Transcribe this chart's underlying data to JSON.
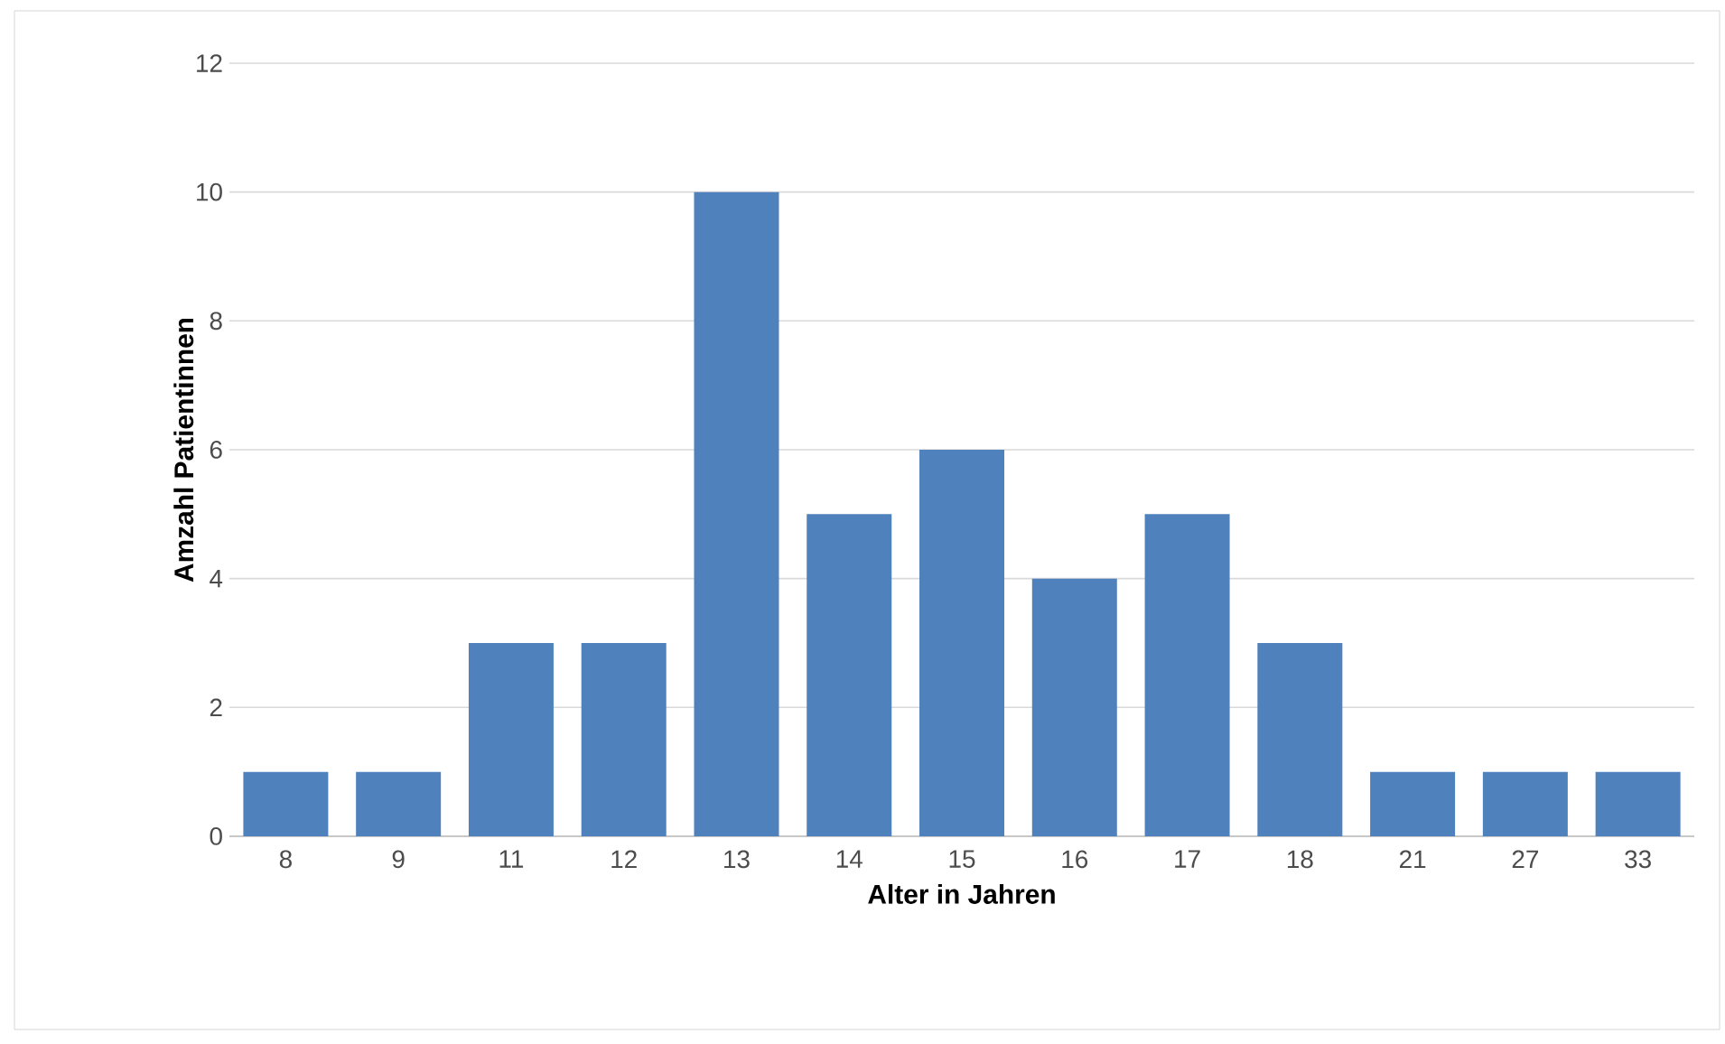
{
  "chart_data": {
    "type": "bar",
    "xlabel": "Alter in Jahren",
    "ylabel": "Amzahl Patientinnen",
    "categories": [
      "8",
      "9",
      "11",
      "12",
      "13",
      "14",
      "15",
      "16",
      "17",
      "18",
      "21",
      "27",
      "33"
    ],
    "values": [
      1,
      1,
      3,
      3,
      10,
      5,
      6,
      4,
      5,
      3,
      1,
      1,
      1
    ],
    "color": "#4f81bd",
    "ylim": [
      0,
      12
    ],
    "yticks": [
      0,
      2,
      4,
      6,
      8,
      10,
      12
    ],
    "grid": "y"
  }
}
